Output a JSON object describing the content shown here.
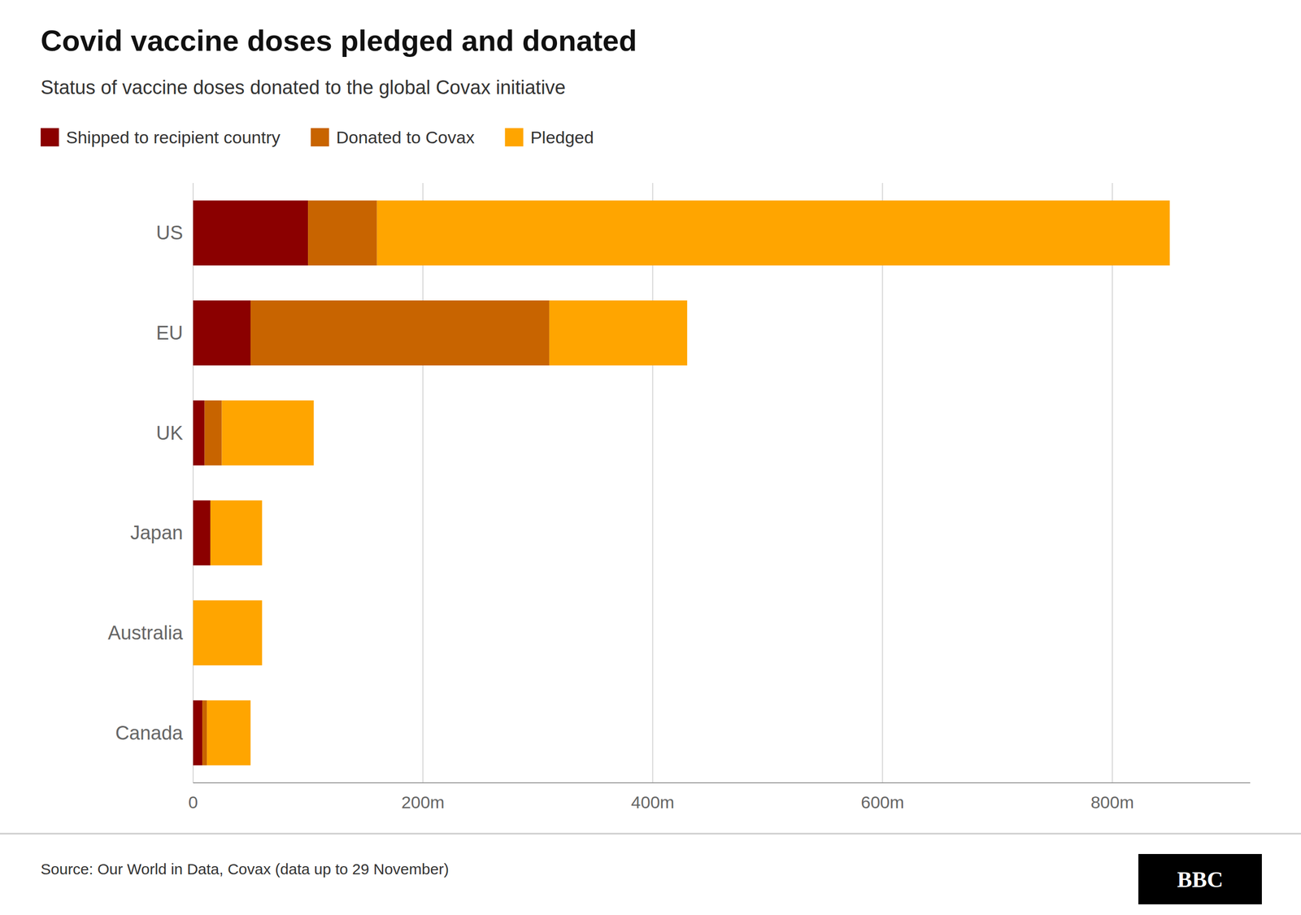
{
  "chart_data": {
    "type": "bar",
    "orientation": "horizontal",
    "stacked": true,
    "title": "Covid vaccine doses pledged and donated",
    "subtitle": "Status of vaccine doses donated to the global Covax initiative",
    "annotations": [
      "Source: Our World in Data, Covax (data up to 29 November)",
      "BBC"
    ],
    "categories": [
      "US",
      "EU",
      "UK",
      "Japan",
      "Australia",
      "Canada"
    ],
    "series": [
      {
        "name": "Shipped to recipient country",
        "color": "#8B0000",
        "values": [
          100,
          50,
          10,
          15,
          0,
          8
        ]
      },
      {
        "name": "Donated to Covax",
        "color": "#C86400",
        "values": [
          60,
          260,
          15,
          0,
          0,
          4
        ]
      },
      {
        "name": "Pledged",
        "color": "#FFA500",
        "values": [
          690,
          120,
          80,
          45,
          60,
          38
        ]
      }
    ],
    "xlim": [
      0,
      920
    ],
    "xticks": [
      0,
      {
        "value": 200,
        "label": "200m"
      },
      {
        "value": 400,
        "label": "400m"
      },
      {
        "value": 600,
        "label": "600m"
      },
      {
        "value": 800,
        "label": "800m"
      }
    ],
    "grid": true,
    "legend": "top-left"
  }
}
